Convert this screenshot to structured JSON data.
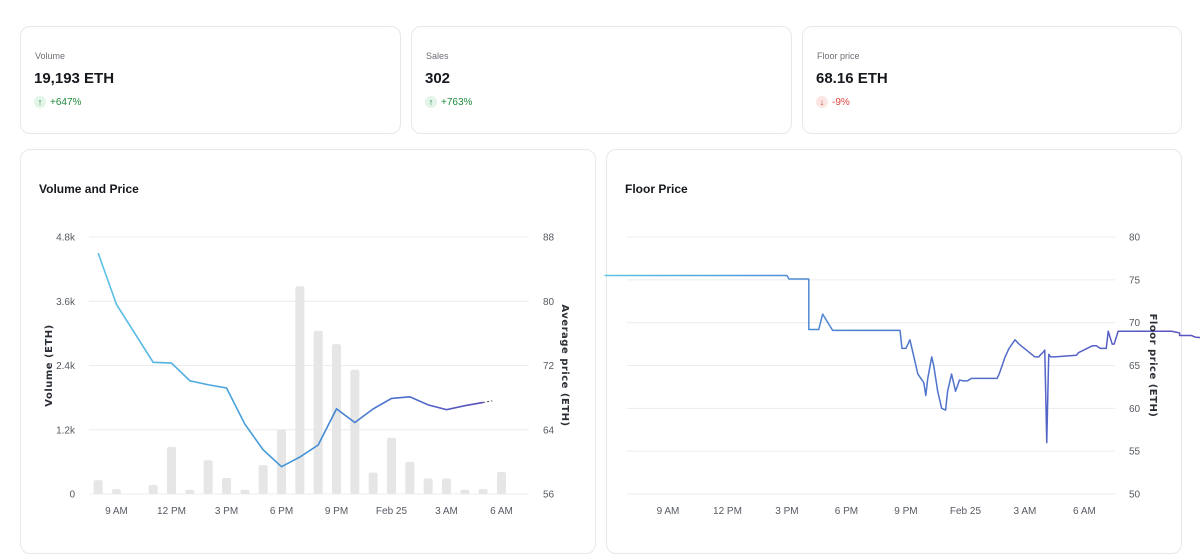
{
  "stats": [
    {
      "label": "Volume",
      "value": "19,193 ETH",
      "change": "+647%",
      "direction": "up",
      "icon": "arrow-up-icon"
    },
    {
      "label": "Sales",
      "value": "302",
      "change": "+763%",
      "direction": "up",
      "icon": "arrow-up-icon"
    },
    {
      "label": "Floor price",
      "value": "68.16 ETH",
      "change": "-9%",
      "direction": "down",
      "icon": "arrow-down-icon"
    }
  ],
  "colors": {
    "positive": "#1e8a3c",
    "negative": "#d6453d",
    "bar": "#e6e6e6",
    "line_start": "#5cc3e6",
    "line_end": "#5a4fc0",
    "grid": "#ececec"
  },
  "chart_data": [
    {
      "type": "bar",
      "title": "Volume and Price",
      "x_tick_labels": [
        "9 AM",
        "12 PM",
        "3 PM",
        "6 PM",
        "9 PM",
        "Feb 25",
        "3 AM",
        "6 AM"
      ],
      "ylabel": "Volume (ETH)",
      "y2label": "Average price (ETH)",
      "ylim": [
        0,
        4800
      ],
      "y_ticks": [
        "0",
        "1.2k",
        "2.4k",
        "3.6k",
        "4.8k"
      ],
      "y2lim": [
        56,
        88
      ],
      "y2_ticks": [
        "56",
        "64",
        "72",
        "80",
        "88"
      ],
      "grid": true,
      "series": [
        {
          "axis": "left",
          "type": "bar",
          "x": [
            8,
            9,
            11,
            12,
            13,
            14,
            15,
            16,
            17,
            18,
            19,
            20,
            21,
            22,
            23,
            24,
            25,
            26,
            27,
            28,
            29,
            30,
            31,
            32
          ],
          "values": [
            260,
            90,
            170,
            880,
            80,
            630,
            300,
            80,
            540,
            1200,
            3880,
            3050,
            2800,
            2320,
            400,
            1050,
            600,
            290,
            290,
            80,
            90,
            410,
            0,
            0
          ]
        },
        {
          "axis": "right",
          "type": "line",
          "x": [
            8,
            9,
            11,
            12,
            13,
            14,
            15,
            16,
            17,
            18,
            19,
            20,
            21,
            22,
            23,
            24,
            25,
            26,
            27,
            28,
            29,
            29.5
          ],
          "values": [
            86,
            79.6,
            72.4,
            72.3,
            70.1,
            69.6,
            69.2,
            64.7,
            61.5,
            59.4,
            60.6,
            62.1,
            66.6,
            64.9,
            66.6,
            67.9,
            68.1,
            67.1,
            66.5,
            67,
            67.4,
            67.6
          ]
        }
      ]
    },
    {
      "type": "line",
      "title": "Floor Price",
      "x_tick_labels": [
        "9 AM",
        "12 PM",
        "3 PM",
        "6 PM",
        "9 PM",
        "Feb 25",
        "3 AM",
        "6 AM"
      ],
      "y2label": "Floor price (ETH)",
      "y2lim": [
        50,
        80
      ],
      "y2_ticks": [
        "50",
        "55",
        "60",
        "65",
        "70",
        "75",
        "80"
      ],
      "grid": true,
      "series": [
        {
          "x": [
            5.8,
            15,
            15.1,
            16.1,
            16.1,
            16.6,
            16.8,
            17.3,
            20.7,
            20.8,
            21,
            21.2,
            21.4,
            21.6,
            21.9,
            22,
            22.1,
            22.3,
            22.4,
            22.6,
            22.8,
            23,
            23.1,
            23.3,
            23.5,
            23.7,
            23.9,
            24.1,
            24.3,
            25.6,
            25.7,
            26,
            26.2,
            26.5,
            26.7,
            27.5,
            27.7,
            27.8,
            27.9,
            28,
            28.1,
            28.2,
            28.3,
            28.5,
            29.6,
            29.7,
            30.4,
            30.6,
            30.8,
            31.1,
            31.2,
            31.4,
            31.5,
            31.7,
            34.4,
            34.8,
            34.8,
            35.4,
            35.6,
            36.4
          ],
          "values": [
            75.5,
            75.5,
            75.1,
            75.1,
            69.2,
            69.2,
            71,
            69.1,
            69.1,
            67,
            67,
            68,
            66,
            64,
            63,
            61.5,
            63.5,
            66,
            65,
            62,
            60,
            59.8,
            62,
            64,
            62,
            63.3,
            63.2,
            63.2,
            63.5,
            63.5,
            64,
            66,
            67,
            68,
            67.5,
            66,
            66,
            66.3,
            66.5,
            66.8,
            56,
            66.3,
            66,
            66,
            66.2,
            66.5,
            67.3,
            67.3,
            67,
            67,
            69,
            67.5,
            67.5,
            69,
            69,
            68.8,
            68.5,
            68.5,
            68.3,
            68.2
          ]
        }
      ]
    }
  ]
}
